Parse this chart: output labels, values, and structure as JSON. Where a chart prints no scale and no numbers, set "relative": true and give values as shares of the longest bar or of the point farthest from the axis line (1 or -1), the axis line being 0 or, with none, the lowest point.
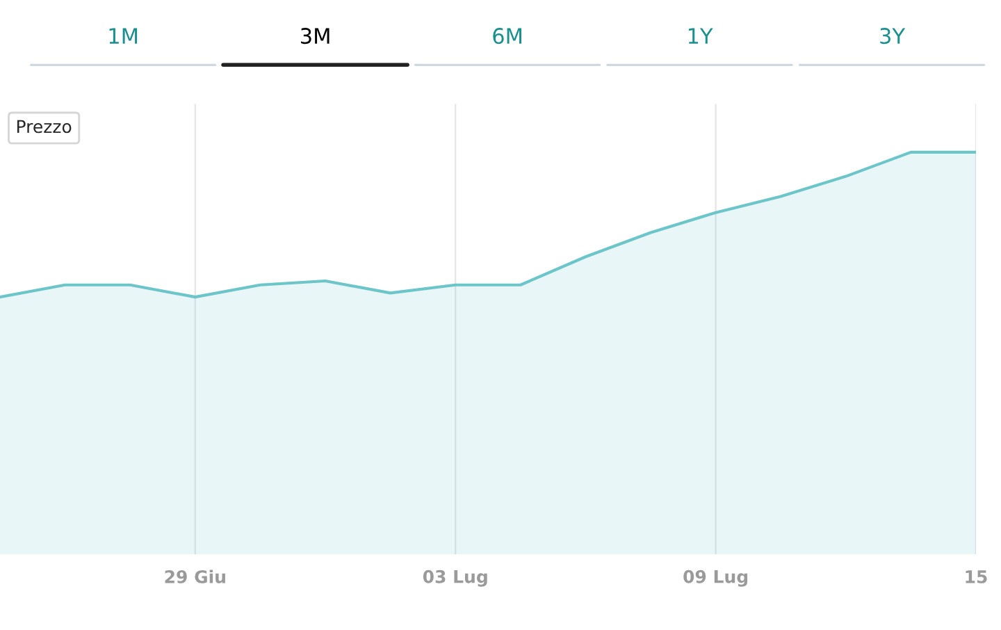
{
  "chart_data": {
    "type": "area",
    "relative": true,
    "categories": [
      null,
      null,
      null,
      "29 Giu",
      null,
      null,
      null,
      "03 Lug",
      null,
      null,
      null,
      "09 Lug",
      null,
      null,
      null,
      "15"
    ],
    "series": [
      {
        "name": "Prezzo",
        "color": "#6cc5c9",
        "values": [
          0.64,
          0.67,
          0.67,
          0.64,
          0.67,
          0.68,
          0.65,
          0.67,
          0.67,
          0.74,
          0.8,
          0.85,
          0.89,
          0.94,
          1.0,
          1.0
        ]
      }
    ],
    "grid": "x",
    "legend": "top left",
    "annotations": [
      "1M",
      "3M",
      "6M",
      "1Y",
      "3Y"
    ]
  }
}
